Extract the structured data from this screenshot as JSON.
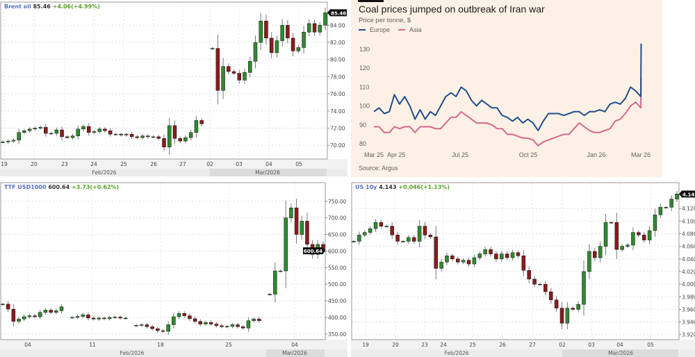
{
  "panels": {
    "brent": {
      "symbol": "Brent oil",
      "price": "85.46",
      "change": "+4.06(+4.99%)",
      "price_tag": "85.46",
      "x_ticks": [
        "19",
        "20",
        "23",
        "24",
        "25",
        "26",
        "27",
        "02",
        "03",
        "04",
        "05"
      ],
      "months": [
        "Feb/2026",
        "Mar/2026"
      ],
      "y_ticks": [
        "70.00",
        "72.00",
        "74.00",
        "76.00",
        "78.00",
        "80.00",
        "82.00",
        "84.00"
      ],
      "ylim": [
        68.4,
        86.7
      ],
      "closes": [
        70.4,
        70.5,
        70.6,
        71.5,
        71.7,
        71.9,
        72.0,
        72.1,
        71.4,
        71.4,
        71.8,
        71.0,
        70.9,
        71.1,
        71.9,
        72.2,
        71.5,
        71.6,
        71.9,
        71.7,
        71.3,
        71.3,
        71.2,
        71.3,
        71.0,
        70.9,
        71.1,
        71.0,
        71.0,
        70.8,
        69.8,
        72.3,
        70.8,
        70.5,
        70.9,
        71.5,
        72.9,
        72.5,
        null,
        81.3,
        76.4,
        79.2,
        78.6,
        78.4,
        77.6,
        78.5,
        79.8,
        82.0,
        84.5,
        82.5,
        80.8,
        82.2,
        84.0,
        82.5,
        81.0,
        81.4,
        83.2,
        84.2,
        83.2,
        84.0,
        85.46
      ]
    },
    "ttf": {
      "symbol": "TTF USD1000",
      "price": "600.64",
      "change": "+3.73(+0.62%)",
      "price_tag": "600.64",
      "x_ticks": [
        "04",
        "11",
        "18",
        "25",
        "04"
      ],
      "months": [
        "Feb/2026",
        "Mar/2026"
      ],
      "y_ticks": [
        "350.00",
        "400.00",
        "450.00",
        "500.00",
        "550.00",
        "600.00",
        "650.00",
        "700.00",
        "750.00"
      ],
      "ylim": [
        333,
        806
      ],
      "closes": [
        440,
        425,
        388,
        395,
        402,
        405,
        402,
        415,
        422,
        415,
        420,
        432,
        null,
        400,
        403,
        408,
        398,
        395,
        398,
        396,
        400,
        401,
        398,
        398,
        null,
        376,
        378,
        372,
        366,
        360,
        358,
        378,
        402,
        412,
        405,
        396,
        388,
        380,
        385,
        380,
        375,
        372,
        373,
        378,
        372,
        368,
        390,
        395,
        390,
        null,
        470,
        540,
        540,
        700,
        730,
        650,
        690,
        620,
        590,
        620,
        600.64
      ]
    },
    "us10y": {
      "symbol": "US 10y",
      "price": "4.143",
      "change": "+0.046(+1.13%)",
      "price_tag": "4.143",
      "x_ticks": [
        "19",
        "20",
        "23",
        "24",
        "25",
        "26",
        "27",
        "02",
        "03",
        "04",
        "05"
      ],
      "months": [
        "Feb/2026",
        "Mar/2026"
      ],
      "y_ticks": [
        "3.920",
        "3.940",
        "3.960",
        "3.980",
        "4.000",
        "4.020",
        "4.040",
        "4.060",
        "4.080",
        "4.100",
        "4.120"
      ],
      "ylim": [
        3.912,
        4.161
      ],
      "closes": [
        4.068,
        4.078,
        4.082,
        4.088,
        4.098,
        4.092,
        4.092,
        4.078,
        4.068,
        4.068,
        4.074,
        4.068,
        4.092,
        4.078,
        4.075,
        4.025,
        4.035,
        4.045,
        4.04,
        4.035,
        4.038,
        4.032,
        4.042,
        4.048,
        4.055,
        4.048,
        4.04,
        4.048,
        4.042,
        4.05,
        4.045,
        4.022,
        4.008,
        4.0,
        4.0,
        3.988,
        3.975,
        3.962,
        3.938,
        3.962,
        3.96,
        3.968,
        4.02,
        4.052,
        4.042,
        4.06,
        4.098,
        4.098,
        4.055,
        4.06,
        4.062,
        4.082,
        4.078,
        4.07,
        4.085,
        4.11,
        4.122,
        4.122,
        4.135,
        4.143
      ]
    }
  },
  "colors": {
    "up": "#2f8a2f",
    "down": "#8a1c1c",
    "europe": "#1f4e8c",
    "asia": "#d4678f",
    "coal_bg": "#fdf1e5"
  },
  "chart_data": [
    {
      "type": "line",
      "title": "Coal prices jumped on outbreak of Iran war",
      "subtitle": "Price per tonne, $",
      "source": "Source: Argus",
      "x_ticks": [
        "Mar 25",
        "Apr 25",
        "Jul 25",
        "Oct 25",
        "Jan 26",
        "Mar 26"
      ],
      "y_ticks": [
        "80",
        "90",
        "100",
        "110",
        "120",
        "130"
      ],
      "ylim": [
        78,
        135
      ],
      "legend": "top-left",
      "series": [
        {
          "name": "Europe",
          "values": [
            97,
            99,
            96,
            97,
            106,
            101,
            105,
            100,
            93,
            98,
            93,
            97,
            95,
            100,
            105,
            107,
            105,
            110,
            108,
            103,
            100,
            103,
            101,
            99,
            99,
            95,
            94,
            92,
            94,
            91,
            93,
            91,
            87,
            92,
            96,
            96,
            96,
            95,
            96,
            97,
            97,
            95,
            97,
            97,
            98,
            97,
            101,
            102,
            101,
            104,
            110,
            108,
            105,
            133
          ]
        },
        {
          "name": "Asia",
          "values": [
            89,
            89,
            86,
            86,
            89,
            88,
            89,
            89,
            86,
            89,
            89,
            89,
            88,
            88,
            91,
            94,
            94,
            97,
            95,
            93,
            91,
            91,
            91,
            90,
            88,
            88,
            85,
            85,
            84,
            83,
            83,
            82,
            79,
            81,
            82,
            83,
            84,
            85,
            85,
            88,
            91,
            89,
            87,
            86,
            86,
            87,
            88,
            92,
            93,
            96,
            100,
            102,
            99,
            115
          ]
        }
      ]
    }
  ]
}
